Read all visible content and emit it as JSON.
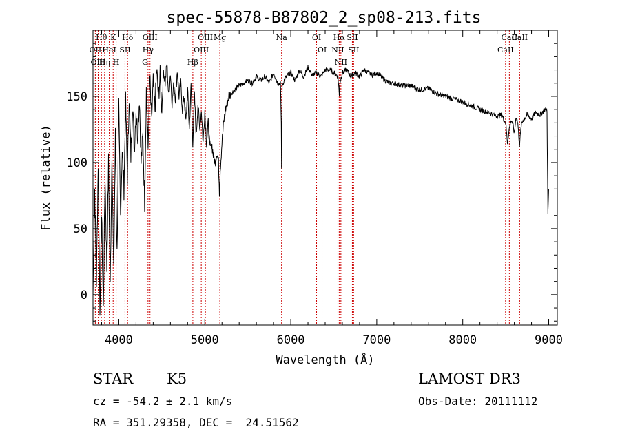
{
  "chart_data": {
    "type": "line",
    "title": "spec-55878-B87802_2_sp08-213.fits",
    "xlabel": "Wavelength (Å)",
    "ylabel": "Flux (relative)",
    "xlim": [
      3700,
      9100
    ],
    "ylim": [
      -23,
      200
    ],
    "xticks": [
      4000,
      5000,
      6000,
      7000,
      8000,
      9000
    ],
    "yticks": [
      0,
      50,
      100,
      150
    ],
    "series": [
      {
        "name": "flux",
        "x": [
          3700,
          3720,
          3740,
          3760,
          3780,
          3800,
          3820,
          3840,
          3860,
          3880,
          3900,
          3920,
          3940,
          3960,
          3980,
          4000,
          4020,
          4040,
          4060,
          4080,
          4100,
          4120,
          4140,
          4160,
          4180,
          4200,
          4220,
          4240,
          4260,
          4280,
          4300,
          4320,
          4340,
          4360,
          4380,
          4400,
          4420,
          4440,
          4460,
          4480,
          4500,
          4520,
          4540,
          4560,
          4580,
          4600,
          4620,
          4640,
          4660,
          4680,
          4700,
          4720,
          4740,
          4760,
          4780,
          4800,
          4820,
          4840,
          4860,
          4880,
          4900,
          4920,
          4940,
          4960,
          4980,
          5000,
          5020,
          5040,
          5060,
          5080,
          5100,
          5120,
          5140,
          5160,
          5170,
          5180,
          5200,
          5220,
          5240,
          5260,
          5280,
          5300,
          5350,
          5400,
          5450,
          5500,
          5550,
          5600,
          5650,
          5700,
          5750,
          5800,
          5850,
          5880,
          5890,
          5893,
          5897,
          5900,
          5920,
          5950,
          6000,
          6050,
          6100,
          6150,
          6200,
          6250,
          6300,
          6350,
          6400,
          6450,
          6500,
          6550,
          6560,
          6565,
          6570,
          6600,
          6650,
          6700,
          6750,
          6800,
          6850,
          6900,
          6950,
          7000,
          7050,
          7100,
          7150,
          7200,
          7300,
          7400,
          7500,
          7600,
          7700,
          7800,
          7900,
          8000,
          8100,
          8200,
          8300,
          8400,
          8450,
          8500,
          8520,
          8540,
          8560,
          8580,
          8600,
          8620,
          8640,
          8660,
          8680,
          8700,
          8750,
          8800,
          8850,
          8900,
          8950,
          8980,
          8990,
          9000
        ],
        "y": [
          0,
          80,
          10,
          100,
          -10,
          60,
          -12,
          90,
          20,
          100,
          5,
          110,
          15,
          120,
          30,
          140,
          60,
          110,
          80,
          145,
          90,
          150,
          105,
          145,
          110,
          140,
          120,
          150,
          100,
          120,
          70,
          155,
          110,
          165,
          130,
          160,
          140,
          170,
          150,
          165,
          140,
          170,
          160,
          175,
          150,
          168,
          145,
          160,
          148,
          170,
          150,
          160,
          140,
          150,
          130,
          155,
          125,
          158,
          115,
          150,
          120,
          145,
          125,
          140,
          115,
          140,
          115,
          130,
          110,
          115,
          105,
          100,
          108,
          100,
          78,
          95,
          115,
          130,
          140,
          145,
          150,
          152,
          155,
          158,
          160,
          162,
          160,
          165,
          162,
          165,
          160,
          168,
          160,
          160,
          130,
          95,
          120,
          158,
          162,
          165,
          168,
          162,
          170,
          165,
          172,
          166,
          168,
          165,
          170,
          170,
          168,
          165,
          155,
          150,
          160,
          168,
          170,
          165,
          168,
          165,
          170,
          168,
          166,
          168,
          165,
          162,
          160,
          160,
          158,
          158,
          155,
          156,
          152,
          150,
          148,
          146,
          143,
          140,
          138,
          135,
          136,
          130,
          115,
          125,
          132,
          130,
          122,
          135,
          130,
          113,
          128,
          132,
          136,
          133,
          138,
          136,
          140,
          140,
          60,
          80
        ],
        "color": "#000000"
      }
    ],
    "lines": [
      {
        "label": "Hθ",
        "x": 3798
      },
      {
        "label": "OII",
        "x": 3727
      },
      {
        "label": "OIII",
        "x": 3760
      },
      {
        "label": "K",
        "x": 3934
      },
      {
        "label": "HeI",
        "x": 3889
      },
      {
        "label": "Hη",
        "x": 3835
      },
      {
        "label": "Hδ",
        "x": 4102
      },
      {
        "label": "SII",
        "x": 4072
      },
      {
        "label": "H",
        "x": 3969
      },
      {
        "label": "OIII",
        "x": 4363
      },
      {
        "label": "Hγ",
        "x": 4340
      },
      {
        "label": "G",
        "x": 4305
      },
      {
        "label": "OIII",
        "x": 5007
      },
      {
        "label": "OIII",
        "x": 4959
      },
      {
        "label": "Hβ",
        "x": 4861
      },
      {
        "label": "Mg",
        "x": 5175
      },
      {
        "label": "Na",
        "x": 5893
      },
      {
        "label": "OI",
        "x": 6300
      },
      {
        "label": "OI",
        "x": 6364
      },
      {
        "label": "Hα",
        "x": 6563
      },
      {
        "label": "SII",
        "x": 6716
      },
      {
        "label": "NII",
        "x": 6548
      },
      {
        "label": "NII",
        "x": 6583
      },
      {
        "label": "SII",
        "x": 6731
      },
      {
        "label": "CaII",
        "x": 8542
      },
      {
        "label": "CaII",
        "x": 8498
      },
      {
        "label": "CaII",
        "x": 8662
      }
    ],
    "line_color": "#cc0000"
  },
  "info": {
    "class": "STAR",
    "subclass": "K5",
    "survey": "LAMOST DR3",
    "cz": "cz = -54.2 ± 2.1 km/s",
    "obs_date": "Obs-Date: 20111112",
    "coords": "RA = 351.29358, DEC =  24.51562"
  }
}
